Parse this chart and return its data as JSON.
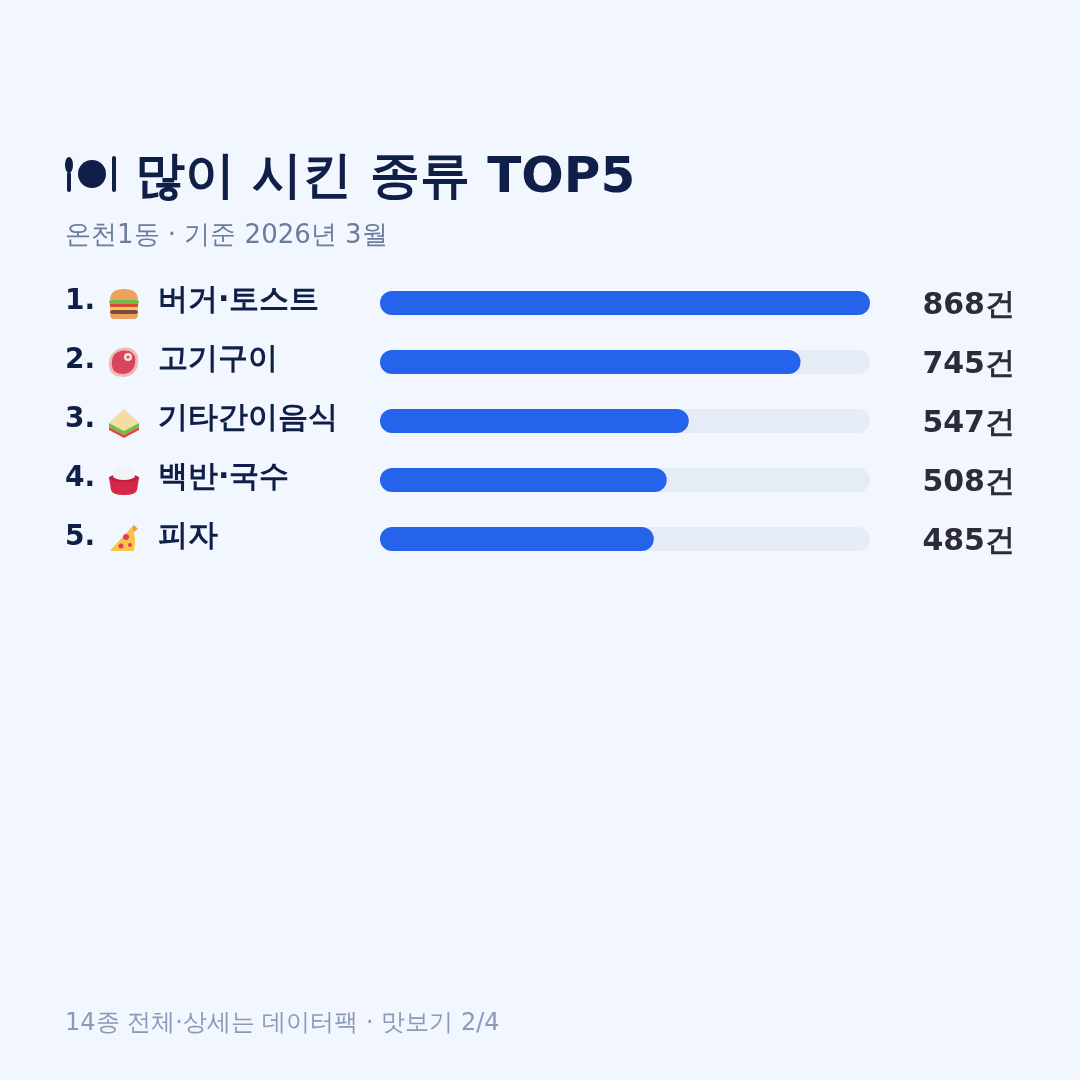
{
  "chart_data": {
    "type": "bar",
    "orientation": "horizontal",
    "title": "많이 시킨 종류 TOP5",
    "subtitle": "온천1동 · 기준 2026년 3월",
    "categories": [
      "1. 버거·토스트",
      "2. 고기구이",
      "3. 기타간이음식",
      "4. 백반·국수",
      "5. 피자"
    ],
    "values": [
      868,
      745,
      547,
      508,
      485
    ],
    "color": "#2563eb",
    "xlim": [
      0,
      868
    ],
    "tick_labels": "y",
    "value_labels": [
      "868건",
      "745건",
      "547건",
      "508건",
      "485건"
    ],
    "annotations": [
      "14종 전체·상세는 데이터팩 · 맛보기 2/4"
    ]
  }
}
